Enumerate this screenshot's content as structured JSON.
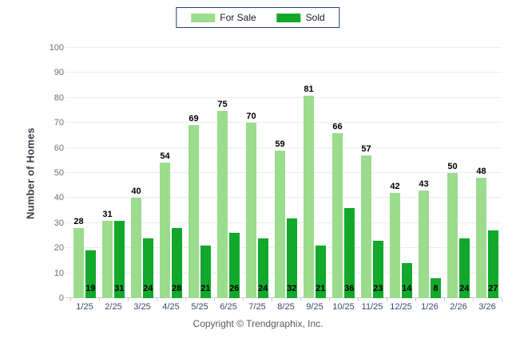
{
  "chart_data": {
    "type": "bar",
    "title": "",
    "categories": [
      "1/25",
      "2/25",
      "3/25",
      "4/25",
      "5/25",
      "6/25",
      "7/25",
      "8/25",
      "9/25",
      "10/25",
      "11/25",
      "12/25",
      "1/26",
      "2/26",
      "3/26"
    ],
    "series": [
      {
        "name": "For Sale",
        "color": "#9bdc8d",
        "values": [
          28,
          31,
          40,
          54,
          69,
          75,
          70,
          59,
          81,
          66,
          57,
          42,
          43,
          50,
          48
        ]
      },
      {
        "name": "Sold",
        "color": "#11a82b",
        "values": [
          19,
          31,
          24,
          28,
          21,
          26,
          24,
          32,
          21,
          36,
          23,
          14,
          8,
          24,
          27
        ]
      }
    ],
    "xlabel": "",
    "ylabel": "Number of Homes",
    "ylim": [
      0,
      100
    ],
    "ytick_step": 10,
    "grid": true,
    "legend_position": "top-center",
    "value_labels": {
      "for_sale": "above-bar",
      "sold": "inside-bar-bottom"
    }
  },
  "colors": {
    "for_sale": "#9bdc8d",
    "sold": "#11a82b",
    "legend_border": "#22406e",
    "gridline": "#ededed",
    "axis_line": "#cccccc",
    "y_tick_text": "#6e6e78",
    "x_tick_text": "#394a6d",
    "value_label_text": "#000000"
  },
  "footer": {
    "copyright": "Copyright © Trendgraphix, Inc."
  }
}
